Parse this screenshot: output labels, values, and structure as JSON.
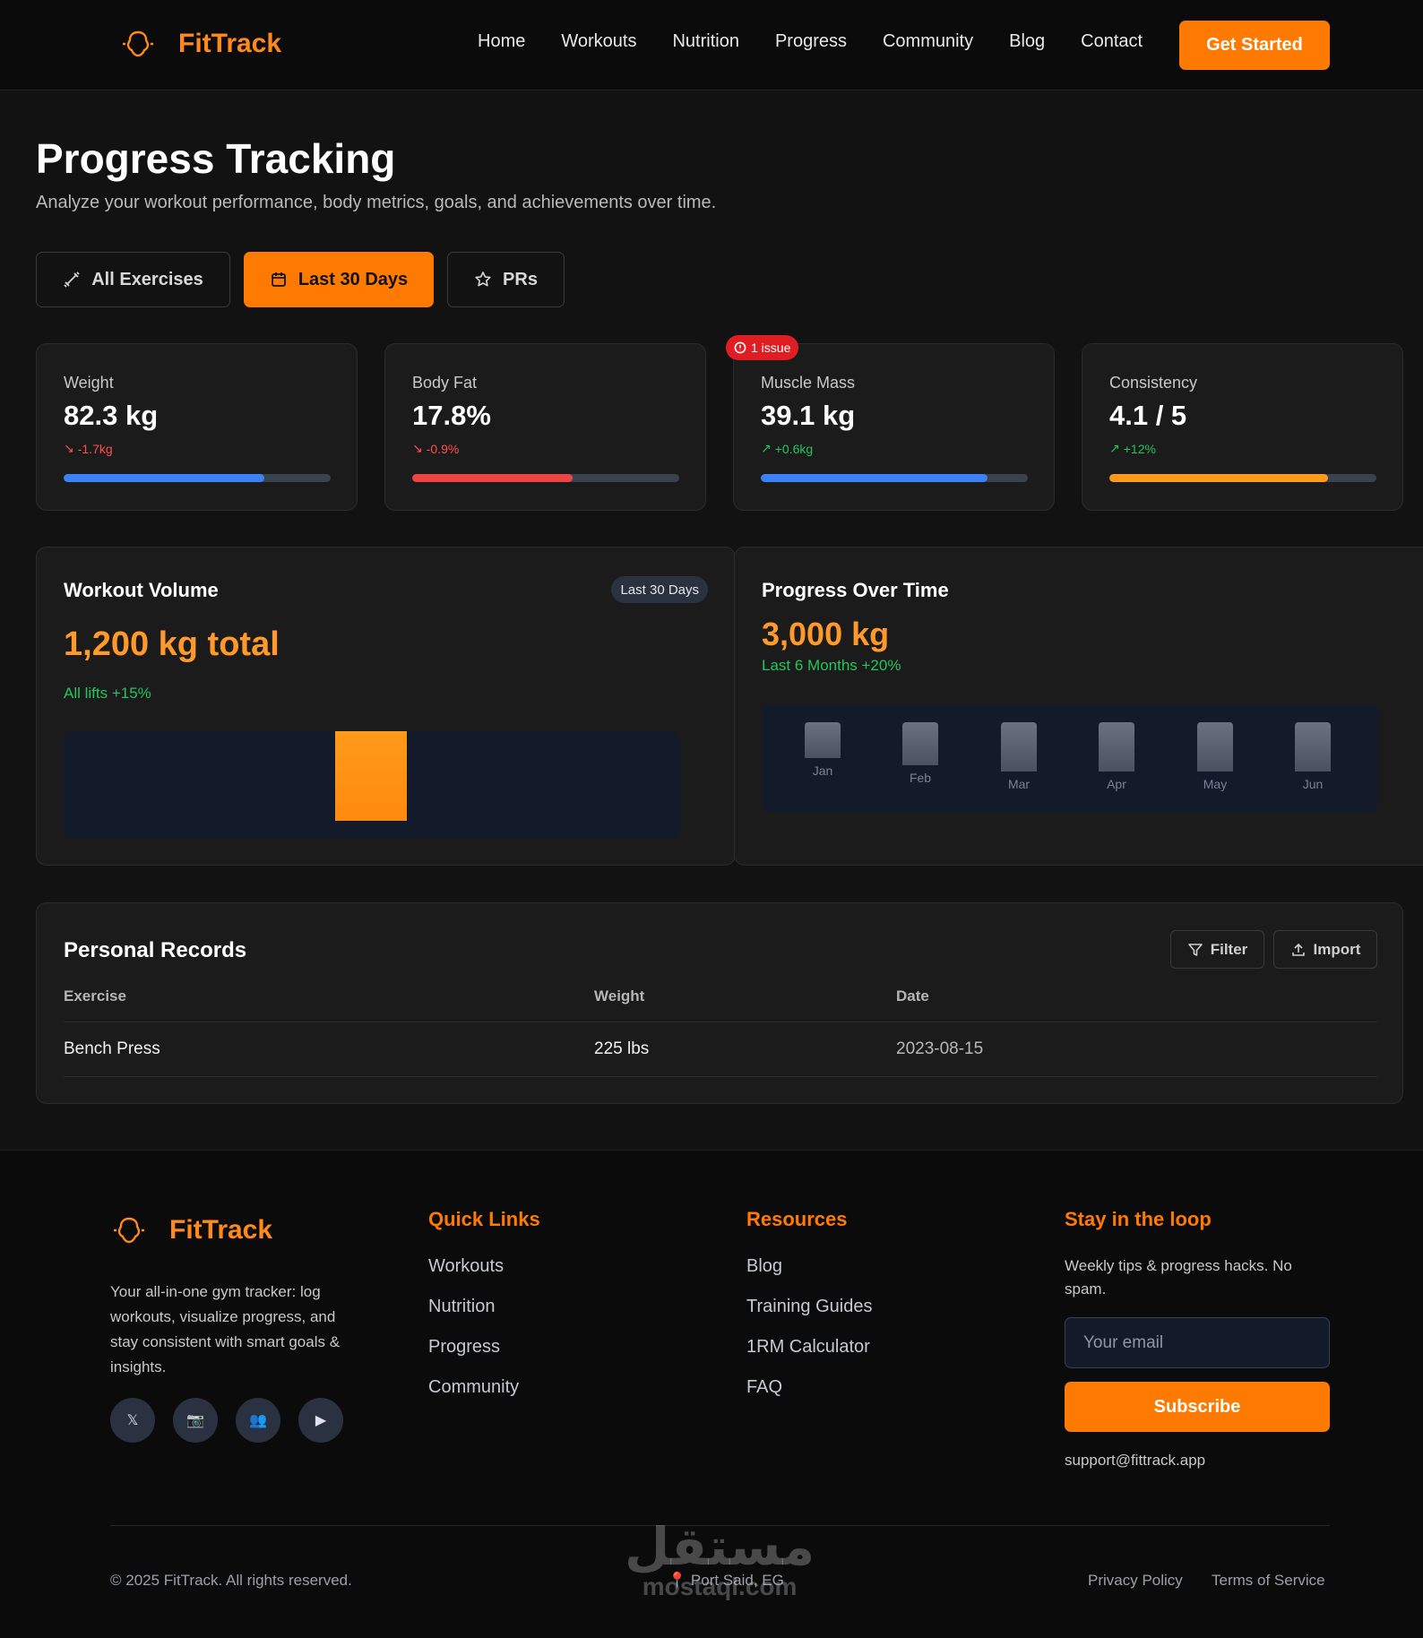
{
  "brand": {
    "name": "FitTrack",
    "accent": "#ff7a00"
  },
  "nav": [
    "Home",
    "Workouts",
    "Nutrition",
    "Progress",
    "Community",
    "Blog",
    "Contact"
  ],
  "header_cta": "Get Started",
  "page": {
    "title": "Progress Tracking",
    "subtitle": "Analyze your workout performance, body metrics, goals, and achievements over time."
  },
  "filters": [
    {
      "label": "All Exercises",
      "icon": "dumbbell-icon",
      "active": false
    },
    {
      "label": "Last 30 Days",
      "icon": "calendar-icon",
      "active": true
    },
    {
      "label": "PRs",
      "icon": "star-icon",
      "active": false
    }
  ],
  "issue_badge": "1 issue",
  "stats": [
    {
      "label": "Weight",
      "value": "82.3 kg",
      "delta": "-1.7kg",
      "trend": "down",
      "progress": 0.75,
      "color": "#3b82f6"
    },
    {
      "label": "Body Fat",
      "value": "17.8%",
      "delta": "-0.9%",
      "trend": "down",
      "progress": 0.6,
      "color": "#ef4444"
    },
    {
      "label": "Muscle Mass",
      "value": "39.1 kg",
      "delta": "+0.6kg",
      "trend": "up",
      "progress": 0.85,
      "color": "#3b82f6"
    },
    {
      "label": "Consistency",
      "value": "4.1 / 5",
      "delta": "+12%",
      "trend": "up",
      "progress": 0.82,
      "color": "#ff9a1a"
    }
  ],
  "workout_volume": {
    "title": "Workout Volume",
    "pill": "Last 30 Days",
    "total": "1,200 kg total",
    "note": "All lifts +15%"
  },
  "progress_over_time": {
    "title": "Progress Over Time",
    "value": "3,000 kg",
    "note": "Last 6 Months +20%",
    "months": [
      "Jan",
      "Feb",
      "Mar",
      "Apr",
      "May",
      "Jun"
    ]
  },
  "records": {
    "title": "Personal Records",
    "filter_label": "Filter",
    "import_label": "Import",
    "columns": [
      "Exercise",
      "Weight",
      "Date"
    ],
    "rows": [
      [
        "Bench Press",
        "225 lbs",
        "2023-08-15"
      ]
    ]
  },
  "footer": {
    "brand": "FitTrack",
    "description": "Your all-in-one gym tracker: log workouts, visualize progress, and stay consistent with smart goals & insights.",
    "social_icons": [
      "x-icon",
      "camera-icon",
      "community-icon",
      "play-icon"
    ],
    "quick_links_title": "Quick Links",
    "quick_links": [
      "Workouts",
      "Nutrition",
      "Progress",
      "Community"
    ],
    "resources_title": "Resources",
    "resources": [
      "Blog",
      "Training Guides",
      "1RM Calculator",
      "FAQ"
    ],
    "newsletter_title": "Stay in the loop",
    "newsletter_note": "Weekly tips & progress hacks. No spam.",
    "email_placeholder": "Your email",
    "subscribe": "Subscribe",
    "support": "support@fittrack.app",
    "copyright": "© 2025 FitTrack. All rights reserved.",
    "location": "Port Said, EG",
    "privacy": "Privacy Policy",
    "terms": "Terms of Service"
  },
  "watermark": {
    "arabic": "مستقل",
    "latin": "mostaql.com"
  }
}
